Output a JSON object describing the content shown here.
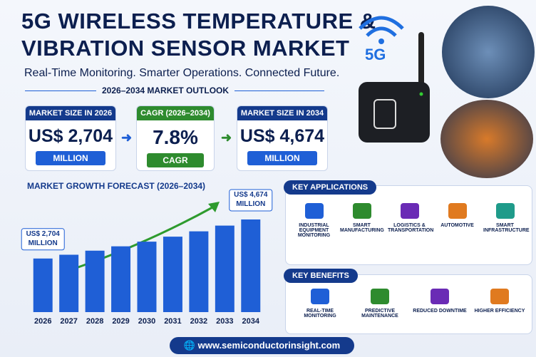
{
  "header": {
    "title_line1": "5G WIRELESS TEMPERATURE &",
    "title_line2": "VIBRATION SENSOR MARKET",
    "subtitle": "Real-Time Monitoring. Smarter Operations. Connected Future.",
    "badge": "5G",
    "outlook": "2026–2034 MARKET OUTLOOK"
  },
  "kpis": [
    {
      "label": "MARKET SIZE IN 2026",
      "value": "US$ 2,704",
      "unit": "MILLION"
    },
    {
      "label": "CAGR (2026–2034)",
      "value": "7.8%",
      "unit": "CAGR"
    },
    {
      "label": "MARKET SIZE IN 2034",
      "value": "US$ 4,674",
      "unit": "MILLION"
    }
  ],
  "chart_data": {
    "type": "bar",
    "title": "MARKET GROWTH FORECAST (2026–2034)",
    "categories": [
      "2026",
      "2027",
      "2028",
      "2029",
      "2030",
      "2031",
      "2032",
      "2033",
      "2034"
    ],
    "values": [
      2704,
      2895,
      3100,
      3320,
      3555,
      3807,
      4076,
      4365,
      4674
    ],
    "value_labels": [
      "US$ 2,704 MILLION",
      null,
      null,
      null,
      null,
      null,
      null,
      null,
      "US$ 4,674 MILLION"
    ],
    "color": "#1f5fd6"
  },
  "applications": {
    "title": "KEY APPLICATIONS",
    "items": [
      "INDUSTRIAL EQUIPMENT MONITORING",
      "SMART MANUFACTURING",
      "LOGISTICS & TRANSPORTATION",
      "AUTOMOTIVE",
      "SMART INFRASTRUCTURE"
    ]
  },
  "benefits": {
    "title": "KEY BENEFITS",
    "items": [
      "REAL-TIME MONITORING",
      "PREDICTIVE MAINTENANCE",
      "REDUCED DOWNTIME",
      "HIGHER EFFICIENCY"
    ]
  },
  "footer": {
    "url": "www.semiconductorinsight.com"
  }
}
